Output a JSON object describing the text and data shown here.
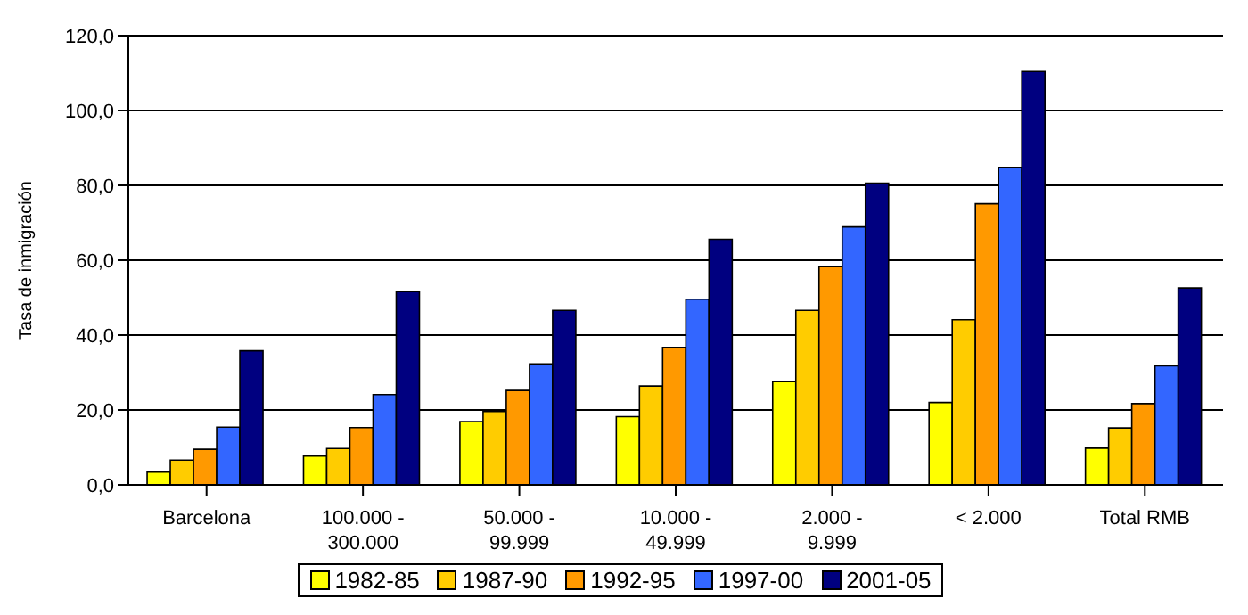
{
  "chart_data": {
    "type": "bar",
    "ylabel": "Tasa de inmigración",
    "categories": [
      "Barcelona",
      "100.000 - 300.000",
      "50.000 - 99.999",
      "10.000 - 49.999",
      "2.000 - 9.999",
      "< 2.000",
      "Total RMB"
    ],
    "series": [
      {
        "name": "1982-85",
        "color": "#ffff00",
        "values": [
          3.4,
          7.7,
          16.9,
          18.2,
          27.6,
          22.0,
          9.8
        ]
      },
      {
        "name": "1987-90",
        "color": "#ffcc00",
        "values": [
          6.6,
          9.7,
          19.6,
          26.4,
          46.6,
          44.1,
          15.2
        ]
      },
      {
        "name": "1992-95",
        "color": "#ff9900",
        "values": [
          9.5,
          15.3,
          25.2,
          36.7,
          58.3,
          75.1,
          21.7
        ]
      },
      {
        "name": "1997-00",
        "color": "#3366ff",
        "values": [
          15.4,
          24.1,
          32.3,
          49.6,
          68.9,
          84.8,
          31.8
        ]
      },
      {
        "name": "2001-05",
        "color": "#000080",
        "values": [
          35.8,
          51.6,
          46.6,
          65.6,
          80.6,
          110.4,
          52.6
        ]
      }
    ],
    "ylim": [
      0,
      120
    ],
    "yticks": [
      {
        "value": 0,
        "label": "0,0"
      },
      {
        "value": 20,
        "label": "20,0"
      },
      {
        "value": 40,
        "label": "40,0"
      },
      {
        "value": 60,
        "label": "60,0"
      },
      {
        "value": 80,
        "label": "80,0"
      },
      {
        "value": 100,
        "label": "100,0"
      },
      {
        "value": 120,
        "label": "120,0"
      }
    ],
    "grid": "y",
    "legend": "bottom"
  }
}
